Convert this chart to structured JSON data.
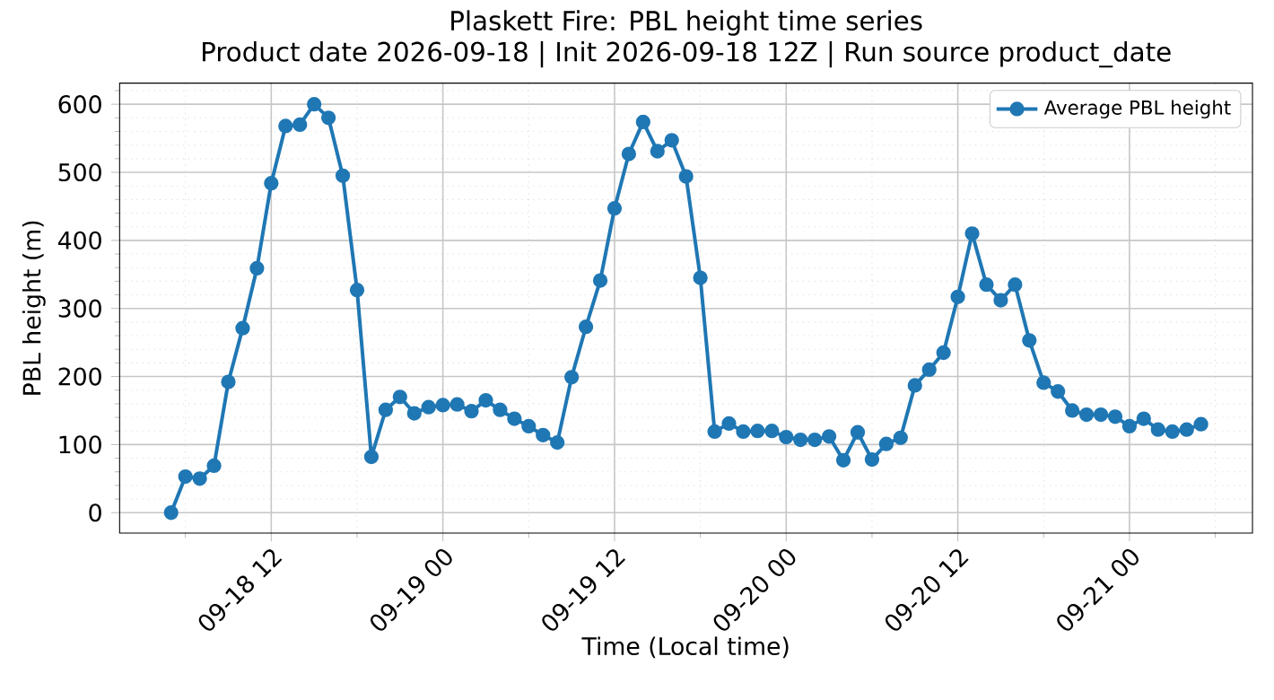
{
  "chart_data": {
    "type": "line",
    "title": "Plaskett Fire: PBL height time series",
    "subtitle": "Product date 2026-09-18 | Init 2026-09-18 12Z | Run source product_date",
    "xlabel": "Time (Local time)",
    "ylabel": "PBL height (m)",
    "x": [
      "2026-09-18T05:00",
      "2026-09-18T06:00",
      "2026-09-18T07:00",
      "2026-09-18T08:00",
      "2026-09-18T09:00",
      "2026-09-18T10:00",
      "2026-09-18T11:00",
      "2026-09-18T12:00",
      "2026-09-18T13:00",
      "2026-09-18T14:00",
      "2026-09-18T15:00",
      "2026-09-18T16:00",
      "2026-09-18T17:00",
      "2026-09-18T18:00",
      "2026-09-18T19:00",
      "2026-09-18T20:00",
      "2026-09-18T21:00",
      "2026-09-18T22:00",
      "2026-09-18T23:00",
      "2026-09-19T00:00",
      "2026-09-19T01:00",
      "2026-09-19T02:00",
      "2026-09-19T03:00",
      "2026-09-19T04:00",
      "2026-09-19T05:00",
      "2026-09-19T06:00",
      "2026-09-19T07:00",
      "2026-09-19T08:00",
      "2026-09-19T09:00",
      "2026-09-19T10:00",
      "2026-09-19T11:00",
      "2026-09-19T12:00",
      "2026-09-19T13:00",
      "2026-09-19T14:00",
      "2026-09-19T15:00",
      "2026-09-19T16:00",
      "2026-09-19T17:00",
      "2026-09-19T18:00",
      "2026-09-19T19:00",
      "2026-09-19T20:00",
      "2026-09-19T21:00",
      "2026-09-19T22:00",
      "2026-09-19T23:00",
      "2026-09-20T00:00",
      "2026-09-20T01:00",
      "2026-09-20T02:00",
      "2026-09-20T03:00",
      "2026-09-20T04:00",
      "2026-09-20T05:00",
      "2026-09-20T06:00",
      "2026-09-20T07:00",
      "2026-09-20T08:00",
      "2026-09-20T09:00",
      "2026-09-20T10:00",
      "2026-09-20T11:00",
      "2026-09-20T12:00",
      "2026-09-20T13:00",
      "2026-09-20T14:00",
      "2026-09-20T15:00",
      "2026-09-20T16:00",
      "2026-09-20T17:00",
      "2026-09-20T18:00",
      "2026-09-20T19:00",
      "2026-09-20T20:00",
      "2026-09-20T21:00",
      "2026-09-20T22:00",
      "2026-09-20T23:00",
      "2026-09-21T00:00",
      "2026-09-21T01:00",
      "2026-09-21T02:00",
      "2026-09-21T03:00",
      "2026-09-21T04:00",
      "2026-09-21T05:00"
    ],
    "series": [
      {
        "name": "Average PBL height",
        "color": "#1f77b4",
        "values": [
          0,
          53,
          50,
          69,
          192,
          271,
          359,
          484,
          568,
          570,
          600,
          580,
          495,
          327,
          82,
          151,
          170,
          146,
          155,
          158,
          159,
          149,
          165,
          151,
          138,
          127,
          114,
          103,
          199,
          273,
          341,
          447,
          527,
          574,
          531,
          547,
          494,
          345,
          119,
          131,
          119,
          120,
          120,
          111,
          107,
          107,
          112,
          77,
          118,
          78,
          101,
          110,
          187,
          210,
          235,
          317,
          410,
          335,
          312,
          335,
          253,
          191,
          178,
          150,
          144,
          144,
          141,
          127,
          138,
          122,
          119,
          122,
          130
        ]
      }
    ],
    "xlim": [
      "2026-09-18T01:24",
      "2026-09-21T08:36"
    ],
    "xticks": [
      {
        "value": "2026-09-18T06:00",
        "label": null
      },
      {
        "value": "2026-09-18T12:00",
        "label": "09-18 12"
      },
      {
        "value": "2026-09-18T18:00",
        "label": null
      },
      {
        "value": "2026-09-19T00:00",
        "label": "09-19 00"
      },
      {
        "value": "2026-09-19T06:00",
        "label": null
      },
      {
        "value": "2026-09-19T12:00",
        "label": "09-19 12"
      },
      {
        "value": "2026-09-19T18:00",
        "label": null
      },
      {
        "value": "2026-09-20T00:00",
        "label": "09-20 00"
      },
      {
        "value": "2026-09-20T06:00",
        "label": null
      },
      {
        "value": "2026-09-20T12:00",
        "label": "09-20 12"
      },
      {
        "value": "2026-09-20T18:00",
        "label": null
      },
      {
        "value": "2026-09-21T00:00",
        "label": "09-21 00"
      },
      {
        "value": "2026-09-21T06:00",
        "label": null
      }
    ],
    "ylim": [
      -30,
      631
    ],
    "yticks": [
      0,
      {
        "value": 20,
        "label": null
      },
      {
        "value": 40,
        "label": null
      },
      {
        "value": 60,
        "label": null
      },
      {
        "value": 80,
        "label": null
      },
      100,
      {
        "value": 120,
        "label": null
      },
      {
        "value": 140,
        "label": null
      },
      {
        "value": 160,
        "label": null
      },
      {
        "value": 180,
        "label": null
      },
      200,
      {
        "value": 220,
        "label": null
      },
      {
        "value": 240,
        "label": null
      },
      {
        "value": 260,
        "label": null
      },
      {
        "value": 280,
        "label": null
      },
      300,
      {
        "value": 320,
        "label": null
      },
      {
        "value": 340,
        "label": null
      },
      {
        "value": 360,
        "label": null
      },
      {
        "value": 380,
        "label": null
      },
      400,
      {
        "value": 420,
        "label": null
      },
      {
        "value": 440,
        "label": null
      },
      {
        "value": 460,
        "label": null
      },
      {
        "value": 480,
        "label": null
      },
      500,
      {
        "value": 520,
        "label": null
      },
      {
        "value": 540,
        "label": null
      },
      {
        "value": 560,
        "label": null
      },
      {
        "value": 580,
        "label": null
      },
      600,
      {
        "value": 620,
        "label": null
      }
    ],
    "grid": true,
    "legend": "top right",
    "marker": "circle",
    "line_style": "solid"
  }
}
